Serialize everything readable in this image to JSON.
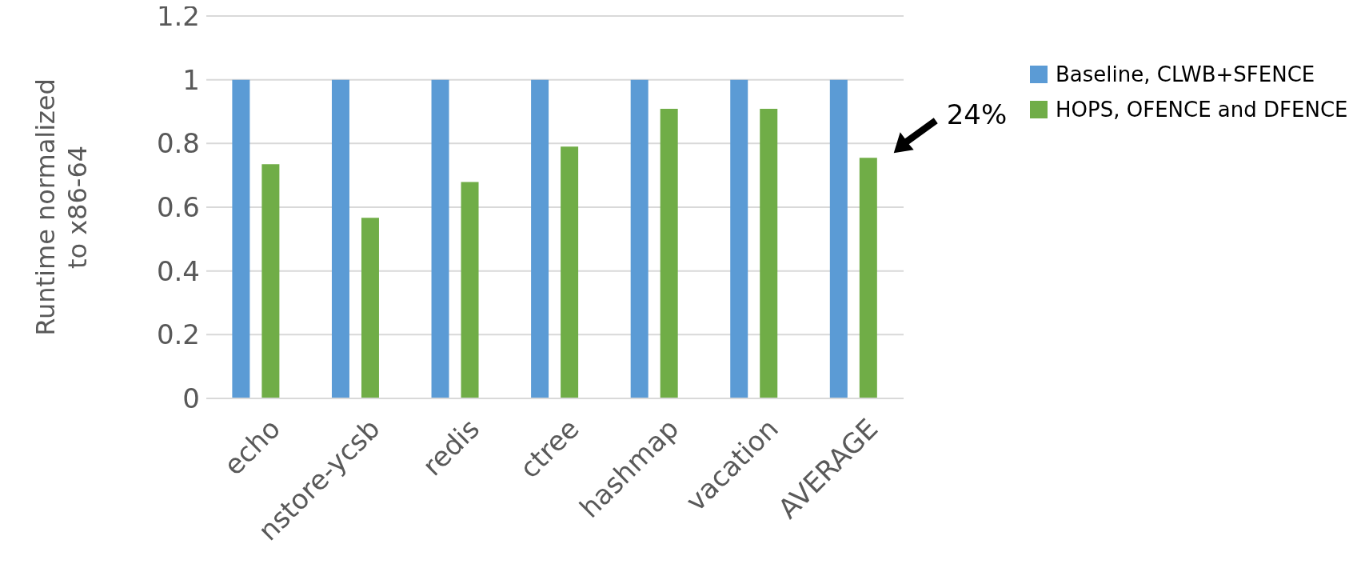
{
  "chart_data": {
    "type": "bar",
    "categories": [
      "echo",
      "nstore-ycsb",
      "redis",
      "ctree",
      "hashmap",
      "vacation",
      "AVERAGE"
    ],
    "series": [
      {
        "name": "Baseline, CLWB+SFENCE",
        "color": "#5b9bd5",
        "values": [
          1,
          1,
          1,
          1,
          1,
          1,
          1
        ]
      },
      {
        "name": "HOPS, OFENCE and DFENCE",
        "color": "#70ad47",
        "values": [
          0.735,
          0.567,
          0.679,
          0.79,
          0.909,
          0.909,
          0.755
        ]
      }
    ],
    "ylabel": "Runtime normalized to x86-64",
    "ylim": [
      0,
      1.2
    ],
    "yticks": [
      0,
      0.2,
      0.4,
      0.6,
      0.8,
      1,
      1.2
    ],
    "grid": "y",
    "legend": "right",
    "annotations": [
      {
        "text": "24%",
        "x": "AVERAGE",
        "y": 0.755
      }
    ]
  }
}
